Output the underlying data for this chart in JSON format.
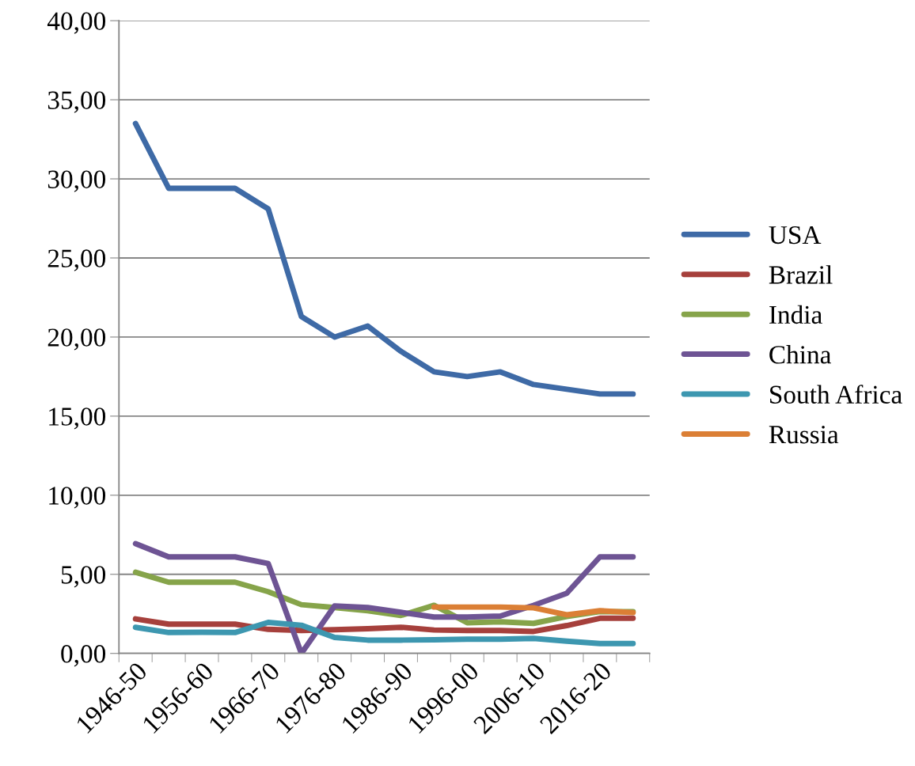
{
  "chart_data": {
    "type": "line",
    "categories": [
      "1946-50",
      null,
      "1956-60",
      null,
      "1966-70",
      null,
      "1976-80",
      null,
      "1986-90",
      null,
      "1996-00",
      null,
      "2006-10",
      null,
      "2016-20",
      null
    ],
    "series": [
      {
        "name": "USA",
        "color": "#3e6aa6",
        "values": [
          33.5,
          29.4,
          29.4,
          29.4,
          28.1,
          21.3,
          20.0,
          20.7,
          19.1,
          17.8,
          17.5,
          17.8,
          17.0,
          16.7,
          16.4,
          16.4
        ]
      },
      {
        "name": "Brazil",
        "color": "#a6403c",
        "values": [
          2.18,
          1.85,
          1.85,
          1.85,
          1.52,
          1.45,
          1.5,
          1.56,
          1.65,
          1.48,
          1.45,
          1.45,
          1.39,
          1.76,
          2.22,
          2.22
        ]
      },
      {
        "name": "India",
        "color": "#86a44a",
        "values": [
          5.13,
          4.5,
          4.5,
          4.5,
          3.9,
          3.08,
          2.9,
          2.7,
          2.4,
          3.04,
          1.94,
          2.0,
          1.9,
          2.33,
          2.64,
          2.64
        ]
      },
      {
        "name": "China",
        "color": "#6e5494",
        "values": [
          6.94,
          6.1,
          6.1,
          6.1,
          5.68,
          0.0,
          3.0,
          2.9,
          2.6,
          2.3,
          2.3,
          2.36,
          3.04,
          3.8,
          6.1,
          6.1
        ]
      },
      {
        "name": "South Africa",
        "color": "#3d97b0",
        "values": [
          1.65,
          1.32,
          1.34,
          1.32,
          1.96,
          1.78,
          1.01,
          0.84,
          0.84,
          0.86,
          0.9,
          0.9,
          0.95,
          0.77,
          0.62,
          0.62
        ]
      },
      {
        "name": "Russia",
        "color": "#db7f35",
        "values": [
          null,
          null,
          null,
          null,
          null,
          null,
          null,
          null,
          null,
          2.93,
          2.93,
          2.93,
          2.88,
          2.44,
          2.7,
          2.58
        ]
      }
    ],
    "ylim": [
      0,
      40
    ],
    "yticks": [
      {
        "value": 0,
        "label": "0,00"
      },
      {
        "value": 5,
        "label": "5,00"
      },
      {
        "value": 10,
        "label": "10,00"
      },
      {
        "value": 15,
        "label": "15,00"
      },
      {
        "value": 20,
        "label": "20,00"
      },
      {
        "value": 25,
        "label": "25,00"
      },
      {
        "value": 30,
        "label": "30,00"
      },
      {
        "value": 35,
        "label": "35,00"
      },
      {
        "value": 40,
        "label": "40,00"
      }
    ],
    "grid": "y",
    "legend": "right",
    "marker": "none",
    "line_style": "solid"
  }
}
